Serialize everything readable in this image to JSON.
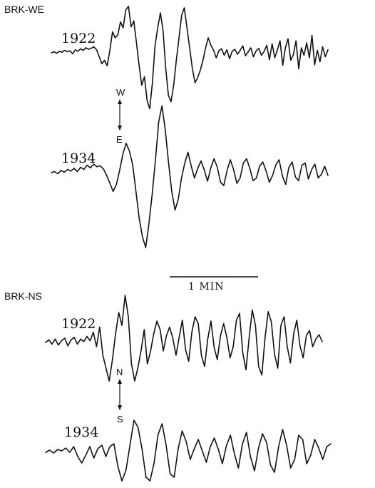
{
  "panels": [
    {
      "label": "BRK-WE",
      "direction_top": "W",
      "direction_bottom": "E",
      "traces": [
        {
          "year": "1922",
          "y": [
            0.0,
            0.2,
            -0.1,
            0.3,
            0.1,
            0.5,
            0.2,
            0.4,
            -0.2,
            0.6,
            0.3,
            0.8,
            0.5,
            1.0,
            0.7,
            0.9,
            1.2,
            0.6,
            -0.8,
            -2.2,
            -1.5,
            -2.6,
            0.5,
            4.2,
            3.0,
            3.6,
            6.2,
            5.0,
            8.6,
            9.3,
            5.2,
            6.4,
            2.0,
            -2.5,
            -6.5,
            -4.8,
            -9.5,
            -11.2,
            -6.0,
            1.5,
            5.0,
            8.0,
            4.5,
            -3.0,
            -8.5,
            -9.8,
            -6.5,
            -1.5,
            3.0,
            7.5,
            9.0,
            5.0,
            1.0,
            -3.0,
            -6.0,
            -5.0,
            -3.5,
            -1.5,
            1.0,
            3.0,
            1.5,
            0.5,
            -1.0,
            0.4,
            0.8,
            -0.5,
            0.6,
            -1.2,
            0.3,
            0.7,
            -0.3,
            0.5,
            1.4,
            -0.6,
            0.2,
            1.0,
            -0.8,
            0.4,
            0.9,
            -0.5,
            0.3,
            1.5,
            -1.4,
            1.8,
            -1.0,
            0.6,
            2.4,
            -2.5,
            1.0,
            2.8,
            -1.5,
            -0.4,
            2.4,
            -3.2,
            1.0,
            -0.5,
            2.0,
            -1.0,
            3.5,
            -2.4,
            0.5,
            -1.8,
            1.2,
            -0.8,
            0.6
          ]
        },
        {
          "year": "1934",
          "y": [
            0.0,
            0.2,
            -0.2,
            0.4,
            0.1,
            0.6,
            0.3,
            0.8,
            0.2,
            1.0,
            0.6,
            1.4,
            0.9,
            1.6,
            1.1,
            1.3,
            0.7,
            -0.5,
            -2.0,
            -3.5,
            -2.2,
            0.5,
            3.5,
            5.5,
            4.0,
            1.5,
            -3.5,
            -8.5,
            -12.0,
            -14.0,
            -9.5,
            -4.0,
            2.5,
            9.5,
            12.5,
            8.0,
            2.0,
            -3.5,
            -7.0,
            -5.0,
            -1.0,
            1.8,
            3.8,
            1.2,
            -1.0,
            0.8,
            2.2,
            0.5,
            -1.6,
            0.9,
            2.6,
            1.0,
            -1.8,
            -2.4,
            0.4,
            2.4,
            0.6,
            -2.0,
            -1.0,
            1.8,
            2.6,
            0.8,
            -1.5,
            -1.0,
            1.2,
            2.0,
            0.3,
            -1.8,
            -0.5,
            1.5,
            2.4,
            -0.6,
            -2.2,
            1.0,
            2.0,
            -0.8,
            -1.5,
            1.4,
            1.8,
            -1.2,
            0.6,
            1.6,
            -1.0,
            -0.3,
            1.2,
            -0.5
          ]
        }
      ]
    },
    {
      "label": "BRK-NS",
      "direction_top": "N",
      "direction_bottom": "S",
      "traces": [
        {
          "year": "1922",
          "y": [
            0.0,
            0.3,
            -0.2,
            0.4,
            -0.3,
            0.2,
            0.5,
            -0.4,
            0.3,
            0.6,
            -0.2,
            0.4,
            0.1,
            0.7,
            0.2,
            1.2,
            -0.5,
            1.8,
            -1.5,
            -3.0,
            -4.5,
            -2.0,
            1.0,
            3.5,
            2.0,
            5.5,
            3.0,
            -2.5,
            -4.5,
            -3.0,
            -1.0,
            1.5,
            -2.5,
            -1.0,
            1.0,
            2.5,
            1.5,
            -1.0,
            0.8,
            1.8,
            0.5,
            -1.5,
            0.6,
            2.6,
            -0.8,
            -2.2,
            1.2,
            3.0,
            2.2,
            -1.5,
            -2.8,
            0.4,
            2.5,
            -0.6,
            -2.0,
            0.8,
            2.2,
            0.6,
            -1.8,
            -0.5,
            2.6,
            3.4,
            -1.2,
            -3.2,
            0.5,
            3.8,
            2.0,
            -2.8,
            -3.8,
            0.5,
            3.6,
            2.4,
            -1.4,
            -3.0,
            2.0,
            3.0,
            -0.5,
            -2.4,
            1.0,
            2.6,
            -0.4,
            -1.8,
            0.8,
            1.4,
            -0.5,
            0.4,
            0.9,
            0.1
          ]
        },
        {
          "year": "1934",
          "y": [
            0.0,
            0.3,
            -0.1,
            0.4,
            0.2,
            0.6,
            0.0,
            0.8,
            -0.6,
            -1.5,
            -0.4,
            0.8,
            -0.8,
            0.5,
            1.0,
            -0.6,
            0.8,
            1.2,
            -2.0,
            -4.0,
            -2.5,
            1.0,
            4.5,
            3.5,
            0.5,
            -3.5,
            -4.0,
            -1.5,
            2.5,
            4.0,
            1.0,
            -3.0,
            -3.5,
            0.5,
            3.0,
            1.5,
            -1.0,
            0.5,
            1.8,
            0.2,
            -1.4,
            0.8,
            2.0,
            0.4,
            -1.6,
            0.9,
            2.4,
            -0.2,
            -2.2,
            1.2,
            2.8,
            -0.6,
            -2.6,
            0.6,
            2.6,
            1.4,
            -1.8,
            -2.8,
            0.8,
            3.2,
            1.0,
            -2.2,
            -1.0,
            2.4,
            1.8,
            -1.6,
            -0.4,
            1.8,
            0.6,
            -1.0,
            0.8,
            1.2
          ]
        }
      ]
    }
  ],
  "scale_bar": {
    "label": "1 MIN"
  }
}
